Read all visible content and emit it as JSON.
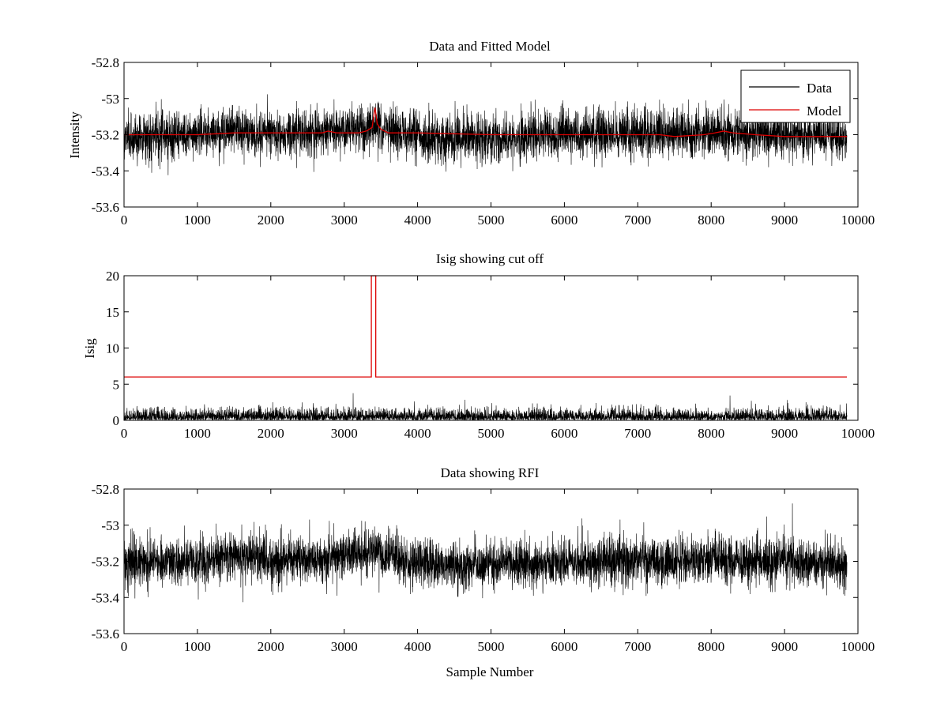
{
  "figure": {
    "background": "#ffffff",
    "data_color": "#000000",
    "model_color": "#dd0000"
  },
  "chart_data": [
    {
      "type": "line",
      "title": "Data and Fitted Model",
      "xlabel": "",
      "ylabel": "Intensity",
      "xlim": [
        0,
        10000
      ],
      "ylim": [
        -53.6,
        -52.8
      ],
      "x_ticks": [
        "0",
        "1000",
        "2000",
        "3000",
        "4000",
        "5000",
        "6000",
        "7000",
        "8000",
        "9000",
        "10000"
      ],
      "y_ticks": [
        "-52.8",
        "-53",
        "-53.2",
        "-53.4",
        "-53.6"
      ],
      "y_tick_values": [
        -52.8,
        -53.0,
        -53.2,
        -53.4,
        -53.6
      ],
      "grid": false,
      "legend": {
        "placement": "top-right",
        "entries": [
          "Data",
          "Model"
        ]
      },
      "series": [
        {
          "name": "Data",
          "color": "#000000",
          "style": "noisy",
          "x_range": [
            0,
            9850
          ],
          "baseline_points": [
            [
              0,
              -53.21
            ],
            [
              1000,
              -53.2
            ],
            [
              1500,
              -53.17
            ],
            [
              2000,
              -53.19
            ],
            [
              2500,
              -53.19
            ],
            [
              3000,
              -53.17
            ],
            [
              3300,
              -53.16
            ],
            [
              3420,
              -53.14
            ],
            [
              3600,
              -53.17
            ],
            [
              4000,
              -53.2
            ],
            [
              4300,
              -53.24
            ],
            [
              4600,
              -53.22
            ],
            [
              5000,
              -53.22
            ],
            [
              5500,
              -53.22
            ],
            [
              6000,
              -53.2
            ],
            [
              6500,
              -53.19
            ],
            [
              7000,
              -53.19
            ],
            [
              7500,
              -53.2
            ],
            [
              8000,
              -53.19
            ],
            [
              8500,
              -53.2
            ],
            [
              9000,
              -53.2
            ],
            [
              9850,
              -53.22
            ]
          ],
          "noise_std": 0.065,
          "min_value": -53.53,
          "max_value": -52.88
        },
        {
          "name": "Model",
          "color": "#dd0000",
          "style": "line",
          "points": [
            [
              0,
              -53.2
            ],
            [
              1000,
              -53.2
            ],
            [
              1500,
              -53.19
            ],
            [
              2000,
              -53.19
            ],
            [
              2700,
              -53.19
            ],
            [
              2780,
              -53.18
            ],
            [
              2900,
              -53.19
            ],
            [
              3200,
              -53.19
            ],
            [
              3300,
              -53.18
            ],
            [
              3380,
              -53.16
            ],
            [
              3420,
              -53.05
            ],
            [
              3450,
              -53.14
            ],
            [
              3500,
              -53.17
            ],
            [
              3600,
              -53.19
            ],
            [
              4000,
              -53.19
            ],
            [
              5000,
              -53.2
            ],
            [
              7300,
              -53.2
            ],
            [
              7500,
              -53.21
            ],
            [
              7900,
              -53.2
            ],
            [
              8050,
              -53.19
            ],
            [
              8170,
              -53.18
            ],
            [
              8300,
              -53.19
            ],
            [
              8600,
              -53.2
            ],
            [
              9000,
              -53.21
            ],
            [
              9850,
              -53.21
            ]
          ]
        }
      ]
    },
    {
      "type": "line",
      "title": "Isig showing cut off",
      "xlabel": "",
      "ylabel": "Isig",
      "xlim": [
        0,
        10000
      ],
      "ylim": [
        0,
        20
      ],
      "x_ticks": [
        "0",
        "1000",
        "2000",
        "3000",
        "4000",
        "5000",
        "6000",
        "7000",
        "8000",
        "9000",
        "10000"
      ],
      "y_ticks": [
        "20",
        "15",
        "10",
        "5",
        "0"
      ],
      "y_tick_values": [
        20,
        15,
        10,
        5,
        0
      ],
      "grid": false,
      "series": [
        {
          "color": "#000000",
          "style": "noise-abs",
          "x_range": [
            0,
            9850
          ],
          "noise_std": 0.75,
          "min_value": 0,
          "max_value": 3.8
        },
        {
          "color": "#dd0000",
          "style": "line",
          "points": [
            [
              0,
              6
            ],
            [
              3370,
              6
            ],
            [
              3370,
              20
            ],
            [
              3430,
              20
            ],
            [
              3430,
              6
            ],
            [
              9850,
              6
            ]
          ]
        }
      ]
    },
    {
      "type": "line",
      "title": "Data showing RFI",
      "xlabel": "Sample Number",
      "ylabel": "",
      "xlim": [
        0,
        10000
      ],
      "ylim": [
        -53.6,
        -52.8
      ],
      "x_ticks": [
        "0",
        "1000",
        "2000",
        "3000",
        "4000",
        "5000",
        "6000",
        "7000",
        "8000",
        "9000",
        "10000"
      ],
      "y_ticks": [
        "-52.8",
        "-53",
        "-53.2",
        "-53.4",
        "-53.6"
      ],
      "y_tick_values": [
        -52.8,
        -53.0,
        -53.2,
        -53.4,
        -53.6
      ],
      "grid": false,
      "series": [
        {
          "color": "#000000",
          "style": "noisy",
          "x_range": [
            0,
            9850
          ],
          "baseline_points": [
            [
              0,
              -53.21
            ],
            [
              1000,
              -53.2
            ],
            [
              1500,
              -53.17
            ],
            [
              2000,
              -53.19
            ],
            [
              2500,
              -53.19
            ],
            [
              3000,
              -53.17
            ],
            [
              3300,
              -53.16
            ],
            [
              3420,
              -53.14
            ],
            [
              3600,
              -53.17
            ],
            [
              4000,
              -53.2
            ],
            [
              4300,
              -53.24
            ],
            [
              4600,
              -53.22
            ],
            [
              5000,
              -53.22
            ],
            [
              5500,
              -53.22
            ],
            [
              6000,
              -53.2
            ],
            [
              6500,
              -53.19
            ],
            [
              7000,
              -53.19
            ],
            [
              7500,
              -53.2
            ],
            [
              8000,
              -53.19
            ],
            [
              8500,
              -53.2
            ],
            [
              9000,
              -53.2
            ],
            [
              9850,
              -53.22
            ]
          ],
          "noise_std": 0.065,
          "min_value": -53.53,
          "max_value": -52.88
        }
      ]
    }
  ]
}
